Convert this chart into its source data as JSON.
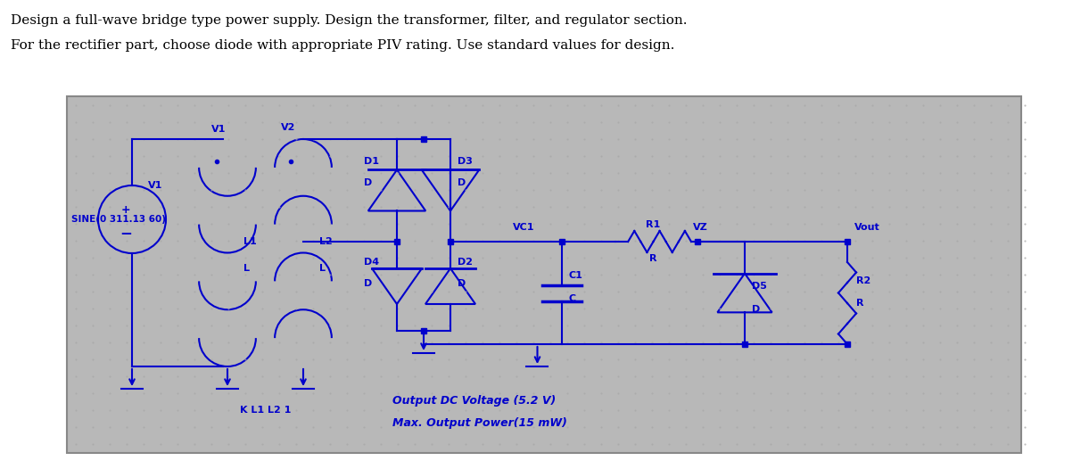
{
  "title_line1": "Design a full-wave bridge type power supply. Design the transformer, filter, and regulator section.",
  "title_line2": "For the rectifier part, choose diode with appropriate PIV rating. Use standard values for design.",
  "wire_color": "#0000cc",
  "title_color": "#000000",
  "circuit_bg": "#b8b8b8",
  "sine_label": "SINE(0 311.13 60)",
  "v1_label": "V1",
  "v2_label": "V2",
  "l1_label": "L1",
  "l1_sub": "L",
  "l2_label": "L2",
  "l2_sub": "L",
  "k_label": "K L1 L2 1",
  "d1_label": "D1",
  "d1_sub": "D",
  "d2_label": "D2",
  "d2_sub": "D",
  "d3_label": "D3",
  "d3_sub": "D",
  "d4_label": "D4",
  "d4_sub": "D",
  "d5_label": "D5",
  "d5_sub": "D",
  "c1_label": "C1",
  "c1_sub": "C",
  "r1_label": "R1",
  "r1_sub": "R",
  "r2_label": "R2",
  "r2_sub": "R",
  "vc1_label": "VC1",
  "vz_label": "VZ",
  "vout_label": "Vout",
  "output_text1": "Output DC Voltage (5.2 V)",
  "output_text2": "Max. Output Power(15 mW)"
}
